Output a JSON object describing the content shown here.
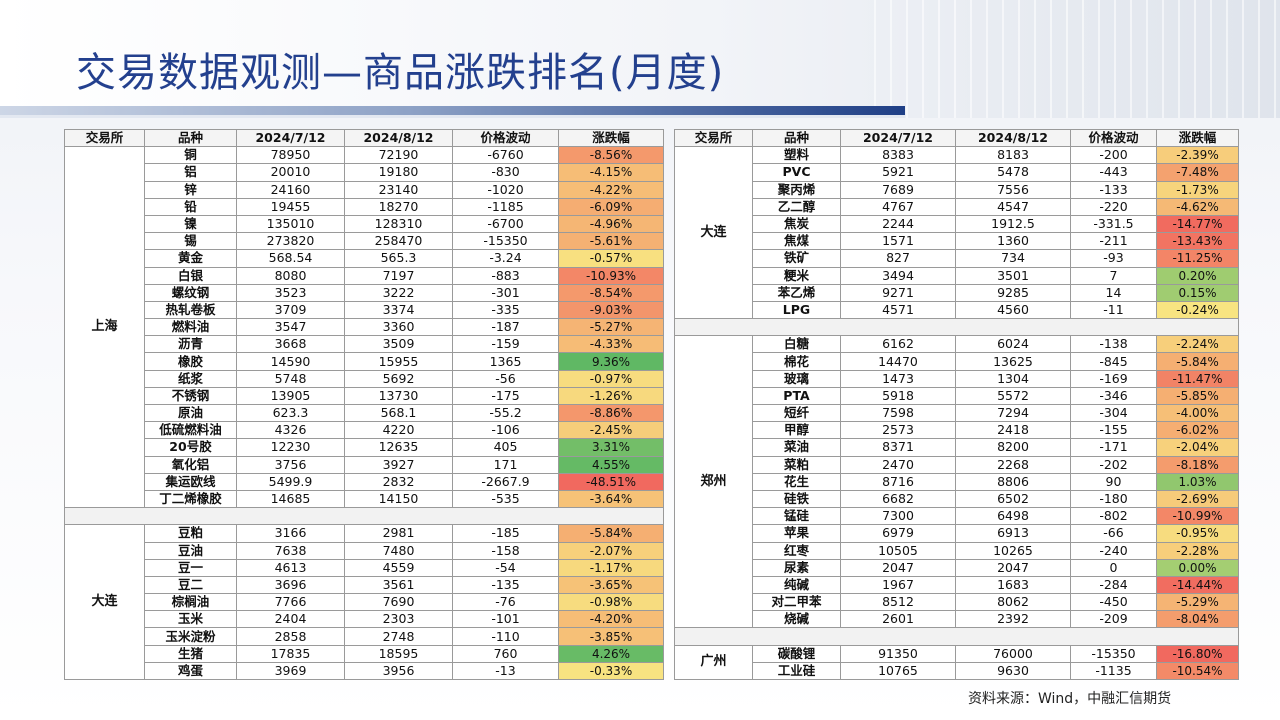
{
  "title": "交易数据观测—商品涨跌排名(月度)",
  "source": "资料来源：Wind，中融汇信期货",
  "headers": [
    "交易所",
    "品种",
    "2024/7/12",
    "2024/8/12",
    "价格波动",
    "涨跌幅"
  ],
  "left_groups": [
    {
      "exchange": "上海",
      "rows": [
        [
          "铜",
          "78950",
          "72190",
          "-6760",
          "-8.56%",
          -8.56
        ],
        [
          "铝",
          "20010",
          "19180",
          "-830",
          "-4.15%",
          -4.15
        ],
        [
          "锌",
          "24160",
          "23140",
          "-1020",
          "-4.22%",
          -4.22
        ],
        [
          "铅",
          "19455",
          "18270",
          "-1185",
          "-6.09%",
          -6.09
        ],
        [
          "镍",
          "135010",
          "128310",
          "-6700",
          "-4.96%",
          -4.96
        ],
        [
          "锡",
          "273820",
          "258470",
          "-15350",
          "-5.61%",
          -5.61
        ],
        [
          "黄金",
          "568.54",
          "565.3",
          "-3.24",
          "-0.57%",
          -0.57
        ],
        [
          "白银",
          "8080",
          "7197",
          "-883",
          "-10.93%",
          -10.93
        ],
        [
          "螺纹钢",
          "3523",
          "3222",
          "-301",
          "-8.54%",
          -8.54
        ],
        [
          "热轧卷板",
          "3709",
          "3374",
          "-335",
          "-9.03%",
          -9.03
        ],
        [
          "燃料油",
          "3547",
          "3360",
          "-187",
          "-5.27%",
          -5.27
        ],
        [
          "沥青",
          "3668",
          "3509",
          "-159",
          "-4.33%",
          -4.33
        ],
        [
          "橡胶",
          "14590",
          "15955",
          "1365",
          "9.36%",
          9.36
        ],
        [
          "纸浆",
          "5748",
          "5692",
          "-56",
          "-0.97%",
          -0.97
        ],
        [
          "不锈钢",
          "13905",
          "13730",
          "-175",
          "-1.26%",
          -1.26
        ],
        [
          "原油",
          "623.3",
          "568.1",
          "-55.2",
          "-8.86%",
          -8.86
        ],
        [
          "低硫燃料油",
          "4326",
          "4220",
          "-106",
          "-2.45%",
          -2.45
        ],
        [
          "20号胶",
          "12230",
          "12635",
          "405",
          "3.31%",
          3.31
        ],
        [
          "氧化铝",
          "3756",
          "3927",
          "171",
          "4.55%",
          4.55
        ],
        [
          "集运欧线",
          "5499.9",
          "2832",
          "-2667.9",
          "-48.51%",
          -48.51
        ],
        [
          "丁二烯橡胶",
          "14685",
          "14150",
          "-535",
          "-3.64%",
          -3.64
        ]
      ]
    },
    {
      "exchange": "大连",
      "rows": [
        [
          "豆粕",
          "3166",
          "2981",
          "-185",
          "-5.84%",
          -5.84
        ],
        [
          "豆油",
          "7638",
          "7480",
          "-158",
          "-2.07%",
          -2.07
        ],
        [
          "豆一",
          "4613",
          "4559",
          "-54",
          "-1.17%",
          -1.17
        ],
        [
          "豆二",
          "3696",
          "3561",
          "-135",
          "-3.65%",
          -3.65
        ],
        [
          "棕榈油",
          "7766",
          "7690",
          "-76",
          "-0.98%",
          -0.98
        ],
        [
          "玉米",
          "2404",
          "2303",
          "-101",
          "-4.20%",
          -4.2
        ],
        [
          "玉米淀粉",
          "2858",
          "2748",
          "-110",
          "-3.85%",
          -3.85
        ],
        [
          "生猪",
          "17835",
          "18595",
          "760",
          "4.26%",
          4.26
        ],
        [
          "鸡蛋",
          "3969",
          "3956",
          "-13",
          "-0.33%",
          -0.33
        ]
      ]
    }
  ],
  "right_groups": [
    {
      "exchange": "大连",
      "rows": [
        [
          "塑料",
          "8383",
          "8183",
          "-200",
          "-2.39%",
          -2.39
        ],
        [
          "PVC",
          "5921",
          "5478",
          "-443",
          "-7.48%",
          -7.48
        ],
        [
          "聚丙烯",
          "7689",
          "7556",
          "-133",
          "-1.73%",
          -1.73
        ],
        [
          "乙二醇",
          "4767",
          "4547",
          "-220",
          "-4.62%",
          -4.62
        ],
        [
          "焦炭",
          "2244",
          "1912.5",
          "-331.5",
          "-14.77%",
          -14.77
        ],
        [
          "焦煤",
          "1571",
          "1360",
          "-211",
          "-13.43%",
          -13.43
        ],
        [
          "铁矿",
          "827",
          "734",
          "-93",
          "-11.25%",
          -11.25
        ],
        [
          "粳米",
          "3494",
          "3501",
          "7",
          "0.20%",
          0.2
        ],
        [
          "苯乙烯",
          "9271",
          "9285",
          "14",
          "0.15%",
          0.15
        ],
        [
          "LPG",
          "4571",
          "4560",
          "-11",
          "-0.24%",
          -0.24
        ]
      ]
    },
    {
      "exchange": "郑州",
      "rows": [
        [
          "白糖",
          "6162",
          "6024",
          "-138",
          "-2.24%",
          -2.24
        ],
        [
          "棉花",
          "14470",
          "13625",
          "-845",
          "-5.84%",
          -5.84
        ],
        [
          "玻璃",
          "1473",
          "1304",
          "-169",
          "-11.47%",
          -11.47
        ],
        [
          "PTA",
          "5918",
          "5572",
          "-346",
          "-5.85%",
          -5.85
        ],
        [
          "短纤",
          "7598",
          "7294",
          "-304",
          "-4.00%",
          -4.0
        ],
        [
          "甲醇",
          "2573",
          "2418",
          "-155",
          "-6.02%",
          -6.02
        ],
        [
          "菜油",
          "8371",
          "8200",
          "-171",
          "-2.04%",
          -2.04
        ],
        [
          "菜粕",
          "2470",
          "2268",
          "-202",
          "-8.18%",
          -8.18
        ],
        [
          "花生",
          "8716",
          "8806",
          "90",
          "1.03%",
          1.03
        ],
        [
          "硅铁",
          "6682",
          "6502",
          "-180",
          "-2.69%",
          -2.69
        ],
        [
          "锰硅",
          "7300",
          "6498",
          "-802",
          "-10.99%",
          -10.99
        ],
        [
          "苹果",
          "6979",
          "6913",
          "-66",
          "-0.95%",
          -0.95
        ],
        [
          "红枣",
          "10505",
          "10265",
          "-240",
          "-2.28%",
          -2.28
        ],
        [
          "尿素",
          "2047",
          "2047",
          "0",
          "0.00%",
          0.0
        ],
        [
          "纯碱",
          "1967",
          "1683",
          "-284",
          "-14.44%",
          -14.44
        ],
        [
          "对二甲苯",
          "8512",
          "8062",
          "-450",
          "-5.29%",
          -5.29
        ],
        [
          "烧碱",
          "2601",
          "2392",
          "-209",
          "-8.04%",
          -8.04
        ]
      ]
    },
    {
      "exchange": "广州",
      "rows": [
        [
          "碳酸锂",
          "91350",
          "76000",
          "-15350",
          "-16.80%",
          -16.8
        ],
        [
          "工业硅",
          "10765",
          "9630",
          "-1135",
          "-10.54%",
          -10.54
        ]
      ]
    }
  ]
}
